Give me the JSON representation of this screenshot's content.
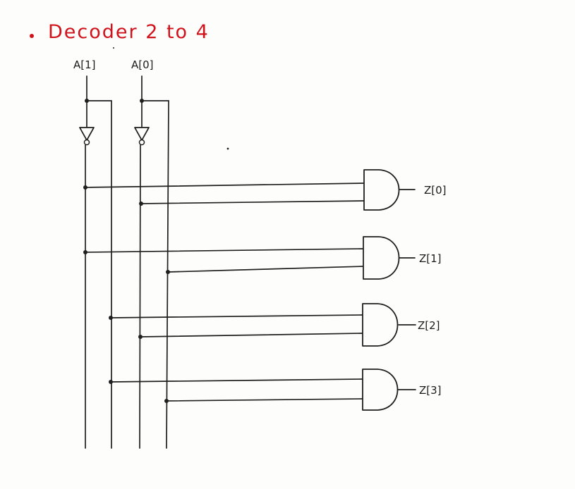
{
  "diagram": {
    "title": "Decoder 2 to 4",
    "inputs": [
      {
        "label": "A[1]"
      },
      {
        "label": "A[0]"
      }
    ],
    "outputs": [
      {
        "label": "Z[0]",
        "gate": "and",
        "inputs": [
          "A[1]'",
          "A[0]'"
        ]
      },
      {
        "label": "Z[1]",
        "gate": "and",
        "inputs": [
          "A[1]'",
          "A[0]"
        ]
      },
      {
        "label": "Z[2]",
        "gate": "and",
        "inputs": [
          "A[1]",
          "A[0]'"
        ]
      },
      {
        "label": "Z[3]",
        "gate": "and",
        "inputs": [
          "A[1]",
          "A[0]"
        ]
      }
    ],
    "colors": {
      "title": "#d0121b",
      "ink": "#1f1f1f"
    }
  }
}
